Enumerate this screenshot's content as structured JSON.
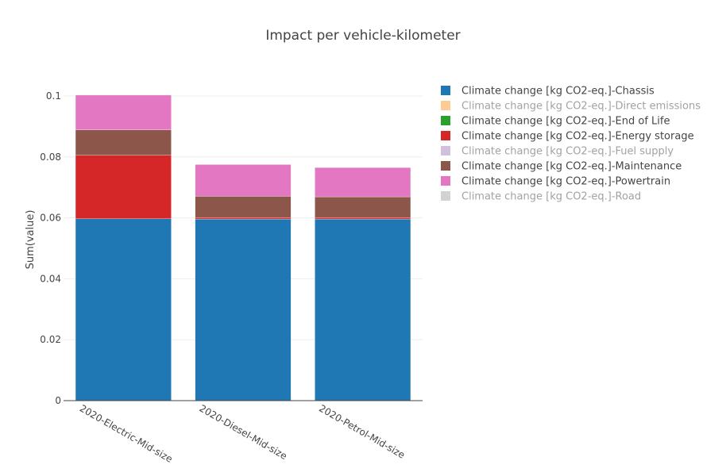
{
  "chart_data": {
    "type": "bar",
    "stacked": true,
    "title": "Impact per vehicle-kilometer",
    "xlabel": "",
    "ylabel": "Sum(value)",
    "ylim": [
      0,
      0.1
    ],
    "y_ticks": [
      "0",
      "0.02",
      "0.04",
      "0.06",
      "0.08",
      "0.1"
    ],
    "grid": true,
    "legend_position": "right",
    "categories": [
      "2020-Electric-Mid-size",
      "2020-Diesel-Mid-size",
      "2020-Petrol-Mid-size"
    ],
    "series": [
      {
        "name": "Climate change [kg CO2-eq.]-Chassis",
        "color": "#1f77b4",
        "visible": true,
        "values": [
          0.0597,
          0.0596,
          0.0596
        ]
      },
      {
        "name": "Climate change [kg CO2-eq.]-Direct emissions",
        "color": "#ffbb78",
        "visible": false,
        "values": [
          0,
          0,
          0
        ]
      },
      {
        "name": "Climate change [kg CO2-eq.]-End of Life",
        "color": "#2ca02c",
        "visible": true,
        "values": [
          0,
          0,
          0
        ]
      },
      {
        "name": "Climate change [kg CO2-eq.]-Energy storage",
        "color": "#d62728",
        "visible": true,
        "values": [
          0.0209,
          0.0005,
          0.0005
        ]
      },
      {
        "name": "Climate change [kg CO2-eq.]-Fuel supply",
        "color": "#c5b0d5",
        "visible": false,
        "values": [
          0,
          0,
          0
        ]
      },
      {
        "name": "Climate change [kg CO2-eq.]-Maintenance",
        "color": "#8c564b",
        "visible": true,
        "values": [
          0.0083,
          0.007,
          0.0068
        ]
      },
      {
        "name": "Climate change [kg CO2-eq.]-Powertrain",
        "color": "#e377c2",
        "visible": true,
        "values": [
          0.0114,
          0.0104,
          0.0096
        ]
      },
      {
        "name": "Climate change [kg CO2-eq.]-Road",
        "color": "#c7c7c7",
        "visible": false,
        "values": [
          0,
          0,
          0
        ]
      }
    ]
  }
}
